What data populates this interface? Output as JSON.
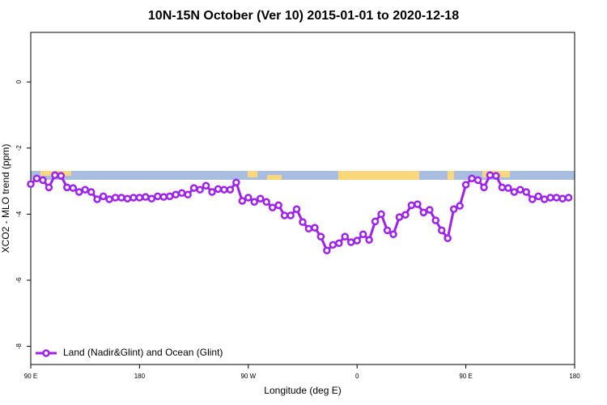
{
  "chart_data": {
    "type": "line",
    "title": "10N-15N October (Ver 10)   2015-01-01 to 2020-12-18",
    "xlabel": "Longitude (deg E)",
    "ylabel": "XCO2 - MLO trend (ppm)",
    "x": [
      90,
      95,
      100,
      105,
      110,
      115,
      120,
      125,
      130,
      135,
      140,
      145,
      150,
      155,
      160,
      165,
      170,
      175,
      180,
      185,
      190,
      195,
      200,
      205,
      210,
      215,
      220,
      225,
      230,
      235,
      240,
      245,
      250,
      255,
      260,
      265,
      270,
      275,
      280,
      285,
      290,
      295,
      300,
      305,
      310,
      315,
      320,
      325,
      330,
      335,
      340,
      345,
      350,
      355,
      360,
      365,
      370,
      375,
      380,
      385,
      390,
      395,
      400,
      405,
      410,
      415,
      420,
      425,
      430,
      435,
      440,
      445,
      450,
      455,
      460,
      465,
      470,
      475,
      480,
      485,
      490,
      495,
      500,
      505,
      510,
      515,
      520,
      525,
      530,
      535
    ],
    "series": [
      {
        "name": "Land (Nadir&Glint) and Ocean (Glint)",
        "color": "#a020f0",
        "values": [
          -3.09,
          -2.92,
          -2.97,
          -3.19,
          -2.82,
          -2.84,
          -3.19,
          -3.21,
          -3.33,
          -3.26,
          -3.33,
          -3.55,
          -3.46,
          -3.55,
          -3.5,
          -3.5,
          -3.53,
          -3.5,
          -3.5,
          -3.48,
          -3.53,
          -3.46,
          -3.48,
          -3.46,
          -3.41,
          -3.36,
          -3.41,
          -3.21,
          -3.26,
          -3.14,
          -3.33,
          -3.24,
          -3.26,
          -3.26,
          -3.04,
          -3.6,
          -3.5,
          -3.63,
          -3.53,
          -3.63,
          -3.8,
          -3.73,
          -4.04,
          -4.04,
          -3.85,
          -4.24,
          -4.44,
          -4.41,
          -4.68,
          -5.1,
          -4.93,
          -4.88,
          -4.68,
          -4.85,
          -4.8,
          -4.61,
          -4.78,
          -4.22,
          -4.0,
          -4.49,
          -4.61,
          -4.09,
          -4.02,
          -3.73,
          -3.7,
          -3.95,
          -3.87,
          -4.19,
          -4.49,
          -4.73,
          -3.85,
          -3.75,
          -3.11,
          -2.92,
          -2.97,
          -3.19,
          -2.82,
          -2.84,
          -3.19,
          -3.21,
          -3.33,
          -3.26,
          -3.33,
          -3.55,
          -3.46,
          -3.55,
          -3.5,
          -3.5,
          -3.53,
          -3.5
        ]
      }
    ],
    "xlim": [
      90,
      540
    ],
    "xticks": [
      {
        "value": 90,
        "label": "90 E"
      },
      180,
      {
        "value": 270,
        "label": "90 W"
      },
      {
        "value": 360,
        "label": "0"
      },
      {
        "value": 450,
        "label": "90 E"
      },
      {
        "value": 540,
        "label": "180"
      }
    ],
    "ylim": [
      -8.55,
      1.5
    ],
    "yticks": [
      0,
      -2,
      -4,
      -6,
      -8
    ],
    "legend": "lower left"
  }
}
